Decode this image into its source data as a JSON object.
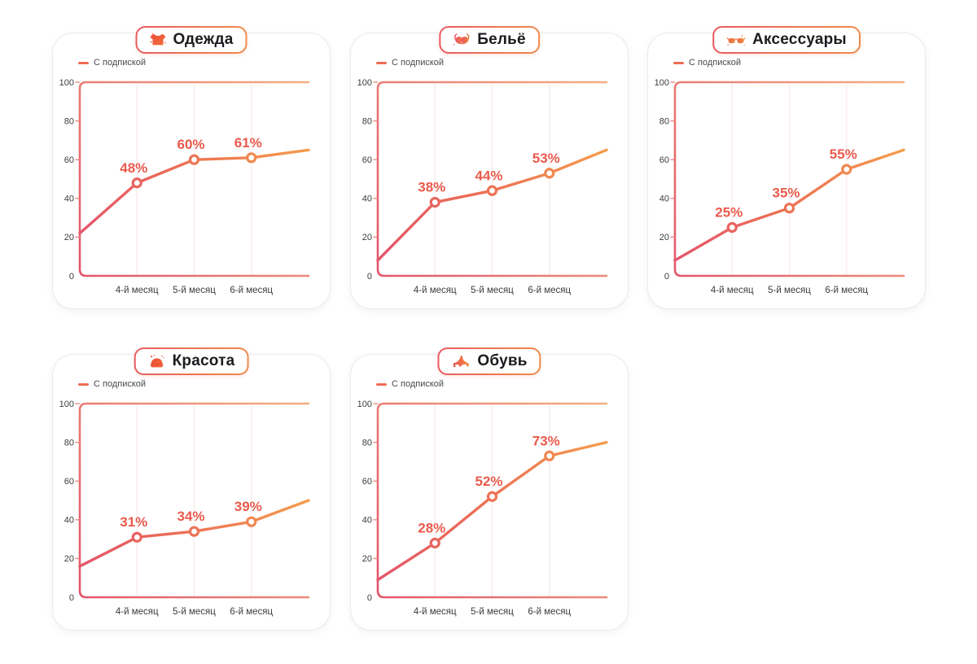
{
  "page_background": "#ffffff",
  "legend_label": "С подпиской",
  "colors": {
    "card_border": "#eaeaef",
    "badge_border_left": "#e75b5f",
    "badge_border_right": "#f08a4a",
    "title_text": "#1b1c20",
    "legend_text": "#4a4a4a",
    "legend_swatch": "#ee6b54",
    "axis_text": "#3c3c3c",
    "percent_label": "#ea5a4c",
    "line_gradient_start": "#e4566b",
    "line_gradient_mid": "#ec6f55",
    "line_gradient_end": "#f59c4d",
    "frame_gradient_start": "#e2566a",
    "frame_gradient_end": "#f3b083",
    "gridline": "#f8e9e8",
    "tick_mark": "#e8837b",
    "marker_fill": "#ffffff"
  },
  "chart_data": [
    {
      "type": "line",
      "title": "Одежда",
      "icon": "clothing-icon",
      "categories": [
        "4-й месяц",
        "5-й месяц",
        "6-й месяц"
      ],
      "yticks": [
        0,
        20,
        40,
        60,
        80,
        100
      ],
      "ylim": [
        0,
        100
      ],
      "grid": "vertical-only",
      "legend_position": "top-left",
      "series": [
        {
          "name": "С подпиской",
          "values": [
            48,
            60,
            61
          ],
          "point_labels": [
            "48%",
            "60%",
            "61%"
          ],
          "edge_start": 22,
          "edge_end": 65
        }
      ]
    },
    {
      "type": "line",
      "title": "Бельё",
      "icon": "bra-icon",
      "categories": [
        "4-й месяц",
        "5-й месяц",
        "6-й месяц"
      ],
      "yticks": [
        0,
        20,
        40,
        60,
        80,
        100
      ],
      "ylim": [
        0,
        100
      ],
      "grid": "vertical-only",
      "legend_position": "top-left",
      "series": [
        {
          "name": "С подпиской",
          "values": [
            38,
            44,
            53
          ],
          "point_labels": [
            "38%",
            "44%",
            "53%"
          ],
          "edge_start": 8,
          "edge_end": 65
        }
      ]
    },
    {
      "type": "line",
      "title": "Аксессуары",
      "icon": "sunglasses-icon",
      "categories": [
        "4-й месяц",
        "5-й месяц",
        "6-й месяц"
      ],
      "yticks": [
        0,
        20,
        40,
        60,
        80,
        100
      ],
      "ylim": [
        0,
        100
      ],
      "grid": "vertical-only",
      "legend_position": "top-left",
      "series": [
        {
          "name": "С подпиской",
          "values": [
            25,
            35,
            55
          ],
          "point_labels": [
            "25%",
            "35%",
            "55%"
          ],
          "edge_start": 8,
          "edge_end": 65
        }
      ]
    },
    {
      "type": "line",
      "title": "Красота",
      "icon": "cosmetics-icon",
      "categories": [
        "4-й месяц",
        "5-й месяц",
        "6-й месяц"
      ],
      "yticks": [
        0,
        20,
        40,
        60,
        80,
        100
      ],
      "ylim": [
        0,
        100
      ],
      "grid": "vertical-only",
      "legend_position": "top-left",
      "series": [
        {
          "name": "С подпиской",
          "values": [
            31,
            34,
            39
          ],
          "point_labels": [
            "31%",
            "34%",
            "39%"
          ],
          "edge_start": 16,
          "edge_end": 50
        }
      ]
    },
    {
      "type": "line",
      "title": "Обувь",
      "icon": "high-heel-icon",
      "categories": [
        "4-й месяц",
        "5-й месяц",
        "6-й месяц"
      ],
      "yticks": [
        0,
        20,
        40,
        60,
        80,
        100
      ],
      "ylim": [
        0,
        100
      ],
      "grid": "vertical-only",
      "legend_position": "top-left",
      "series": [
        {
          "name": "С подпиской",
          "values": [
            28,
            52,
            73
          ],
          "point_labels": [
            "28%",
            "52%",
            "73%"
          ],
          "edge_start": 9,
          "edge_end": 80
        }
      ]
    }
  ]
}
